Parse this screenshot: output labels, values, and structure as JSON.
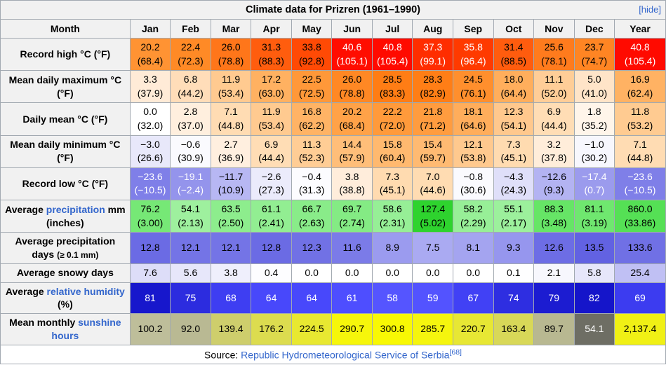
{
  "title": "Climate data for Prizren (1961–1990)",
  "hide_label": "[hide]",
  "columns": [
    "Month",
    "Jan",
    "Feb",
    "Mar",
    "Apr",
    "May",
    "Jun",
    "Jul",
    "Aug",
    "Sep",
    "Oct",
    "Nov",
    "Dec",
    "Year"
  ],
  "colors": {
    "header_bg": "#f1f1f1",
    "border": "#a2a9b1",
    "link": "#3366cc",
    "hot_max": "#ff0a00",
    "cold_max": "#7f7fe8",
    "humidity_blue": "#4848fb",
    "precip_green": "#76e876",
    "sunshine_yellow": "#f8f804"
  },
  "rows": [
    {
      "label_parts": [
        {
          "t": "Record high °C (°F)"
        }
      ],
      "cells": [
        {
          "t": "20.2\n(68.4)",
          "bg": "#FF9333"
        },
        {
          "t": "22.4\n(72.3)",
          "bg": "#FF8A26"
        },
        {
          "t": "26.0\n(78.8)",
          "bg": "#FF761A"
        },
        {
          "t": "31.3\n(88.3)",
          "bg": "#FF5D0E"
        },
        {
          "t": "33.8\n(92.8)",
          "bg": "#FF4A05"
        },
        {
          "t": "40.6\n(105.1)",
          "bg": "#FF0D00",
          "fg": "#FFFFFF"
        },
        {
          "t": "40.8\n(105.4)",
          "bg": "#FF0A00",
          "fg": "#FFFFFF"
        },
        {
          "t": "37.3\n(99.1)",
          "bg": "#FF2D00",
          "fg": "#FFFFFF"
        },
        {
          "t": "35.8\n(96.4)",
          "bg": "#FF3A00",
          "fg": "#FFFFFF"
        },
        {
          "t": "31.4\n(88.5)",
          "bg": "#FF5C0E"
        },
        {
          "t": "25.6\n(78.1)",
          "bg": "#FF7B1D"
        },
        {
          "t": "23.7\n(74.7)",
          "bg": "#FF8523"
        },
        {
          "t": "40.8\n(105.4)",
          "bg": "#FF0A00",
          "fg": "#FFFFFF"
        }
      ]
    },
    {
      "label_parts": [
        {
          "t": "Mean daily maximum °C (°F)"
        }
      ],
      "cells": [
        {
          "t": "3.3\n(37.9)",
          "bg": "#FFEBD7"
        },
        {
          "t": "6.8\n(44.2)",
          "bg": "#FFDDB9"
        },
        {
          "t": "11.9\n(53.4)",
          "bg": "#FFCA90"
        },
        {
          "t": "17.2\n(63.0)",
          "bg": "#FFB161"
        },
        {
          "t": "22.5\n(72.5)",
          "bg": "#FF9839"
        },
        {
          "t": "26.0\n(78.8)",
          "bg": "#FF8824"
        },
        {
          "t": "28.5\n(83.3)",
          "bg": "#FF7D15"
        },
        {
          "t": "28.3\n(82.9)",
          "bg": "#FF7E16"
        },
        {
          "t": "24.5\n(76.1)",
          "bg": "#FF8F2D"
        },
        {
          "t": "18.0\n(64.4)",
          "bg": "#FFAE5C"
        },
        {
          "t": "11.1\n(52.0)",
          "bg": "#FFCD97"
        },
        {
          "t": "5.0\n(41.0)",
          "bg": "#FFE4C8"
        },
        {
          "t": "16.9\n(62.4)",
          "bg": "#FFB263"
        }
      ]
    },
    {
      "label_parts": [
        {
          "t": "Daily mean °C (°F)"
        }
      ],
      "cells": [
        {
          "t": "0.0\n(32.0)",
          "bg": "#FFFFFF"
        },
        {
          "t": "2.8\n(37.0)",
          "bg": "#FFEFDE"
        },
        {
          "t": "7.1\n(44.8)",
          "bg": "#FFDCB3"
        },
        {
          "t": "11.9\n(53.4)",
          "bg": "#FFCA90"
        },
        {
          "t": "16.8\n(62.2)",
          "bg": "#FFB365"
        },
        {
          "t": "20.2\n(68.4)",
          "bg": "#FFA248"
        },
        {
          "t": "22.2\n(72.0)",
          "bg": "#FF9A3B"
        },
        {
          "t": "21.8\n(71.2)",
          "bg": "#FF9C3F"
        },
        {
          "t": "18.1\n(64.6)",
          "bg": "#FFAD5B"
        },
        {
          "t": "12.3\n(54.1)",
          "bg": "#FFC88D"
        },
        {
          "t": "6.9\n(44.4)",
          "bg": "#FFDDB5"
        },
        {
          "t": "1.8\n(35.2)",
          "bg": "#FFF5EA"
        },
        {
          "t": "11.8\n(53.2)",
          "bg": "#FFCB91"
        }
      ]
    },
    {
      "label_parts": [
        {
          "t": "Mean daily minimum °C (°F)"
        }
      ],
      "cells": [
        {
          "t": "−3.0\n(26.6)",
          "bg": "#E8E8FA"
        },
        {
          "t": "−0.6\n(30.9)",
          "bg": "#FAFAFE"
        },
        {
          "t": "2.7\n(36.9)",
          "bg": "#FFEFDF"
        },
        {
          "t": "6.9\n(44.4)",
          "bg": "#FFDDB5"
        },
        {
          "t": "11.3\n(52.3)",
          "bg": "#FFCD95"
        },
        {
          "t": "14.4\n(57.9)",
          "bg": "#FFBE79"
        },
        {
          "t": "15.8\n(60.4)",
          "bg": "#FFB96F"
        },
        {
          "t": "15.4\n(59.7)",
          "bg": "#FFBA72"
        },
        {
          "t": "12.1\n(53.8)",
          "bg": "#FFC98E"
        },
        {
          "t": "7.3\n(45.1)",
          "bg": "#FFDBB0"
        },
        {
          "t": "3.2\n(37.8)",
          "bg": "#FFEDDA"
        },
        {
          "t": "−1.0\n(30.2)",
          "bg": "#F7F7FD"
        },
        {
          "t": "7.1\n(44.8)",
          "bg": "#FFDCB3"
        }
      ]
    },
    {
      "label_parts": [
        {
          "t": "Record low °C (°F)"
        }
      ],
      "cells": [
        {
          "t": "−23.6\n(−10.5)",
          "bg": "#7F7FE8",
          "fg": "#FFFFFF"
        },
        {
          "t": "−19.1\n(−2.4)",
          "bg": "#9494EC",
          "fg": "#FFFFFF"
        },
        {
          "t": "−11.7\n(10.9)",
          "bg": "#B7B7F3"
        },
        {
          "t": "−2.6\n(27.3)",
          "bg": "#EBEBFB"
        },
        {
          "t": "−0.4\n(31.3)",
          "bg": "#FCFCFF"
        },
        {
          "t": "3.8\n(38.8)",
          "bg": "#FFEDDB"
        },
        {
          "t": "7.3\n(45.1)",
          "bg": "#FFDBB0"
        },
        {
          "t": "7.0\n(44.6)",
          "bg": "#FFDCB2"
        },
        {
          "t": "−0.8\n(30.6)",
          "bg": "#FAFAFE"
        },
        {
          "t": "−4.3\n(24.3)",
          "bg": "#DFDFF9"
        },
        {
          "t": "−12.6\n(9.3)",
          "bg": "#B3B3F2"
        },
        {
          "t": "−17.4\n(0.7)",
          "bg": "#9B9BED",
          "fg": "#FFFFFF"
        },
        {
          "t": "−23.6\n(−10.5)",
          "bg": "#7F7FE8",
          "fg": "#FFFFFF"
        }
      ]
    },
    {
      "label_parts": [
        {
          "t": "Average "
        },
        {
          "t": "precipitation",
          "link": true
        },
        {
          "t": " mm (inches)"
        }
      ],
      "cells": [
        {
          "t": "76.2\n(3.00)",
          "bg": "#76E876"
        },
        {
          "t": "54.1\n(2.13)",
          "bg": "#9EF09E"
        },
        {
          "t": "63.5\n(2.50)",
          "bg": "#8DED8D"
        },
        {
          "t": "61.1\n(2.41)",
          "bg": "#92EE92"
        },
        {
          "t": "66.7\n(2.63)",
          "bg": "#89EC89"
        },
        {
          "t": "69.7\n(2.74)",
          "bg": "#84EB84"
        },
        {
          "t": "58.6\n(2.31)",
          "bg": "#96EF96"
        },
        {
          "t": "127.4\n(5.02)",
          "bg": "#2ED32E"
        },
        {
          "t": "58.2\n(2.29)",
          "bg": "#97EF97"
        },
        {
          "t": "55.1\n(2.17)",
          "bg": "#9CF09C"
        },
        {
          "t": "88.3\n(3.48)",
          "bg": "#66E566"
        },
        {
          "t": "81.1\n(3.19)",
          "bg": "#6FE76F"
        },
        {
          "t": "860.0\n(33.86)",
          "bg": "#55E055"
        }
      ]
    },
    {
      "label_parts": [
        {
          "t": "Average precipitation days "
        },
        {
          "t": "(≥ 0.1 mm)",
          "small": true
        }
      ],
      "cells": [
        {
          "t": "12.8",
          "bg": "#6B6BE4"
        },
        {
          "t": "12.1",
          "bg": "#7474E6"
        },
        {
          "t": "12.1",
          "bg": "#7474E6"
        },
        {
          "t": "12.8",
          "bg": "#6B6BE4"
        },
        {
          "t": "12.3",
          "bg": "#7171E5"
        },
        {
          "t": "11.6",
          "bg": "#7B7BE8"
        },
        {
          "t": "8.9",
          "bg": "#9B9BEF"
        },
        {
          "t": "7.5",
          "bg": "#AAAAF2"
        },
        {
          "t": "8.1",
          "bg": "#A4A4F0"
        },
        {
          "t": "9.3",
          "bg": "#9696EE"
        },
        {
          "t": "12.6",
          "bg": "#6D6DE5"
        },
        {
          "t": "13.5",
          "bg": "#6262E2"
        },
        {
          "t": "133.6",
          "bg": "#7070E5"
        }
      ]
    },
    {
      "label_parts": [
        {
          "t": "Average snowy days"
        }
      ],
      "cells": [
        {
          "t": "7.6",
          "bg": "#DDDDF8"
        },
        {
          "t": "5.6",
          "bg": "#E7E7FA"
        },
        {
          "t": "3.8",
          "bg": "#EFEFFC"
        },
        {
          "t": "0.4",
          "bg": "#FDFDFF"
        },
        {
          "t": "0.0",
          "bg": "#FFFFFF"
        },
        {
          "t": "0.0",
          "bg": "#FFFFFF"
        },
        {
          "t": "0.0",
          "bg": "#FFFFFF"
        },
        {
          "t": "0.0",
          "bg": "#FFFFFF"
        },
        {
          "t": "0.0",
          "bg": "#FFFFFF"
        },
        {
          "t": "0.1",
          "bg": "#FEFEFF"
        },
        {
          "t": "2.1",
          "bg": "#F7F7FD"
        },
        {
          "t": "5.8",
          "bg": "#E6E6FA"
        },
        {
          "t": "25.4",
          "bg": "#C0C0F4"
        }
      ]
    },
    {
      "label_parts": [
        {
          "t": "Average "
        },
        {
          "t": "relative humidity",
          "link": true
        },
        {
          "t": " (%)"
        }
      ],
      "cells": [
        {
          "t": "81",
          "bg": "#1717CC",
          "fg": "#FFFFFF"
        },
        {
          "t": "75",
          "bg": "#2C2CDF",
          "fg": "#FFFFFF"
        },
        {
          "t": "68",
          "bg": "#3E3EF2",
          "fg": "#FFFFFF"
        },
        {
          "t": "64",
          "bg": "#4848FB",
          "fg": "#FFFFFF"
        },
        {
          "t": "64",
          "bg": "#4848FB",
          "fg": "#FFFFFF"
        },
        {
          "t": "61",
          "bg": "#4E4EFF",
          "fg": "#FFFFFF"
        },
        {
          "t": "58",
          "bg": "#5555FF",
          "fg": "#FFFFFF"
        },
        {
          "t": "59",
          "bg": "#5353FF",
          "fg": "#FFFFFF"
        },
        {
          "t": "67",
          "bg": "#4141F5",
          "fg": "#FFFFFF"
        },
        {
          "t": "74",
          "bg": "#2E2EE1",
          "fg": "#FFFFFF"
        },
        {
          "t": "79",
          "bg": "#1C1CD1",
          "fg": "#FFFFFF"
        },
        {
          "t": "82",
          "bg": "#1515CA",
          "fg": "#FFFFFF"
        },
        {
          "t": "69",
          "bg": "#3C3CF0",
          "fg": "#FFFFFF"
        }
      ]
    },
    {
      "label_parts": [
        {
          "t": "Mean monthly "
        },
        {
          "t": "sunshine hours",
          "link": true
        }
      ],
      "cells": [
        {
          "t": "100.2",
          "bg": "#BEBE9A"
        },
        {
          "t": "92.0",
          "bg": "#B9B993"
        },
        {
          "t": "139.4",
          "bg": "#CECE6C"
        },
        {
          "t": "176.2",
          "bg": "#DCDC4F"
        },
        {
          "t": "224.5",
          "bg": "#E8E831"
        },
        {
          "t": "290.7",
          "bg": "#F6F60B"
        },
        {
          "t": "300.8",
          "bg": "#F8F804"
        },
        {
          "t": "285.7",
          "bg": "#F5F50E"
        },
        {
          "t": "220.7",
          "bg": "#E7E734"
        },
        {
          "t": "163.4",
          "bg": "#D8D858"
        },
        {
          "t": "89.7",
          "bg": "#B8B891"
        },
        {
          "t": "54.1",
          "bg": "#6E6E64",
          "fg": "#FFFFFF"
        },
        {
          "t": "2,137.4",
          "bg": "#F0F015"
        }
      ]
    }
  ],
  "source": {
    "prefix": "Source: ",
    "link_text": "Republic Hydrometeorological Service of Serbia",
    "ref": "[68]"
  }
}
